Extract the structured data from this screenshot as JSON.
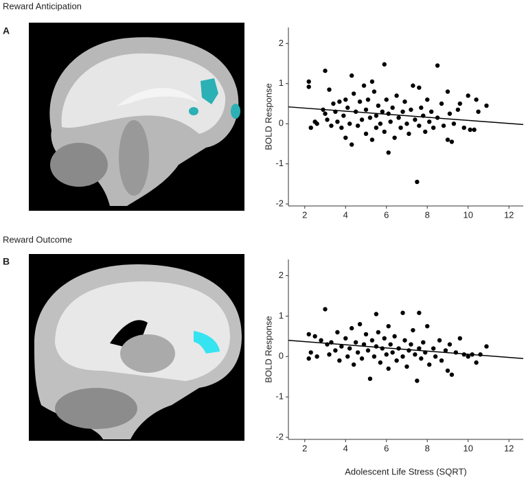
{
  "panels": [
    {
      "title": "Reward Anticipation",
      "label": "A"
    },
    {
      "title": "Reward Outcome",
      "label": "B"
    }
  ],
  "chart_data": [
    {
      "type": "scatter",
      "y_label": "BOLD Response",
      "color": "#000000",
      "xlim": [
        1.2,
        12.7
      ],
      "ylim": [
        -2.05,
        2.4
      ],
      "xticks": [
        2,
        4,
        6,
        8,
        10,
        12
      ],
      "yticks": [
        -2,
        -1,
        0,
        1,
        2
      ],
      "x": [
        2.2,
        2.2,
        2.3,
        2.5,
        2.6,
        2.9,
        3.0,
        3.0,
        3.1,
        3.2,
        3.3,
        3.4,
        3.5,
        3.6,
        3.7,
        3.8,
        3.9,
        4.0,
        4.0,
        4.1,
        4.2,
        4.3,
        4.3,
        4.4,
        4.5,
        4.6,
        4.7,
        4.8,
        4.9,
        5.0,
        5.0,
        5.1,
        5.2,
        5.3,
        5.3,
        5.4,
        5.5,
        5.5,
        5.6,
        5.7,
        5.8,
        5.9,
        5.9,
        6.0,
        6.1,
        6.1,
        6.2,
        6.3,
        6.4,
        6.5,
        6.6,
        6.7,
        6.8,
        6.9,
        7.0,
        7.1,
        7.2,
        7.3,
        7.4,
        7.5,
        7.6,
        7.6,
        7.7,
        7.8,
        7.9,
        8.0,
        8.1,
        8.2,
        8.3,
        8.5,
        8.5,
        8.7,
        8.8,
        9.0,
        9.0,
        9.1,
        9.2,
        9.3,
        9.5,
        9.6,
        9.8,
        10.0,
        10.1,
        10.3,
        10.4,
        10.5,
        10.9
      ],
      "values": [
        1.05,
        0.92,
        -0.1,
        0.05,
        0.0,
        0.35,
        1.32,
        0.25,
        0.1,
        0.85,
        -0.05,
        0.5,
        0.3,
        0.05,
        0.55,
        -0.1,
        0.2,
        0.6,
        -0.35,
        0.4,
        0.0,
        1.2,
        -0.52,
        0.75,
        0.3,
        -0.05,
        0.55,
        0.1,
        0.95,
        0.35,
        -0.25,
        0.6,
        0.15,
        1.05,
        -0.4,
        0.8,
        0.2,
        -0.1,
        0.45,
        0.0,
        0.3,
        1.48,
        -0.2,
        0.6,
        -0.72,
        0.25,
        0.05,
        0.4,
        -0.35,
        0.7,
        0.15,
        -0.1,
        0.3,
        0.55,
        0.0,
        -0.25,
        0.35,
        0.95,
        0.1,
        -1.45,
        0.9,
        -0.05,
        0.4,
        0.2,
        -0.2,
        0.6,
        0.05,
        0.3,
        -0.1,
        1.45,
        0.15,
        0.5,
        -0.05,
        0.8,
        -0.4,
        0.25,
        -0.45,
        0.0,
        0.35,
        0.5,
        -0.1,
        0.7,
        -0.15,
        -0.15,
        0.6,
        0.3,
        0.45
      ],
      "fit_line": {
        "x": [
          1.2,
          12.7
        ],
        "values": [
          0.42,
          -0.02
        ]
      }
    },
    {
      "type": "scatter",
      "y_label": "BOLD Response",
      "x_label": "Adolescent Life Stress (SQRT)",
      "color": "#000000",
      "xlim": [
        1.2,
        12.7
      ],
      "ylim": [
        -2.05,
        2.4
      ],
      "xticks": [
        2,
        4,
        6,
        8,
        10,
        12
      ],
      "yticks": [
        -2,
        -1,
        0,
        1,
        2
      ],
      "x": [
        2.2,
        2.2,
        2.3,
        2.5,
        2.6,
        2.8,
        3.0,
        3.1,
        3.2,
        3.3,
        3.5,
        3.6,
        3.7,
        3.8,
        4.0,
        4.1,
        4.2,
        4.3,
        4.4,
        4.5,
        4.6,
        4.7,
        4.8,
        4.9,
        5.0,
        5.1,
        5.2,
        5.3,
        5.4,
        5.5,
        5.5,
        5.6,
        5.7,
        5.8,
        5.9,
        6.0,
        6.1,
        6.1,
        6.2,
        6.3,
        6.4,
        6.5,
        6.6,
        6.8,
        6.8,
        6.9,
        7.0,
        7.1,
        7.2,
        7.3,
        7.4,
        7.5,
        7.6,
        7.6,
        7.7,
        7.8,
        7.9,
        8.0,
        8.1,
        8.3,
        8.4,
        8.6,
        8.7,
        8.9,
        9.0,
        9.1,
        9.2,
        9.4,
        9.6,
        9.8,
        10.0,
        10.2,
        10.4,
        10.6,
        10.9
      ],
      "values": [
        0.55,
        -0.05,
        0.1,
        0.5,
        0.0,
        0.4,
        1.17,
        0.3,
        0.05,
        0.35,
        0.15,
        0.6,
        -0.1,
        0.25,
        0.45,
        0.0,
        0.2,
        0.7,
        -0.2,
        0.35,
        0.1,
        0.8,
        -0.05,
        0.3,
        0.55,
        0.15,
        -0.55,
        0.4,
        0.0,
        1.05,
        0.25,
        0.6,
        -0.15,
        0.2,
        0.45,
        0.05,
        0.75,
        -0.3,
        0.3,
        0.1,
        0.5,
        -0.1,
        0.2,
        1.08,
        0.0,
        0.4,
        -0.25,
        0.15,
        0.3,
        0.65,
        0.05,
        -0.6,
        1.08,
        0.2,
        -0.05,
        0.35,
        0.1,
        0.75,
        -0.2,
        0.2,
        0.0,
        0.4,
        -0.1,
        0.15,
        -0.35,
        0.3,
        -0.45,
        0.1,
        0.45,
        0.05,
        0.0,
        0.05,
        -0.15,
        0.05,
        0.25
      ],
      "fit_line": {
        "x": [
          1.2,
          12.7
        ],
        "values": [
          0.4,
          -0.05
        ]
      }
    }
  ]
}
